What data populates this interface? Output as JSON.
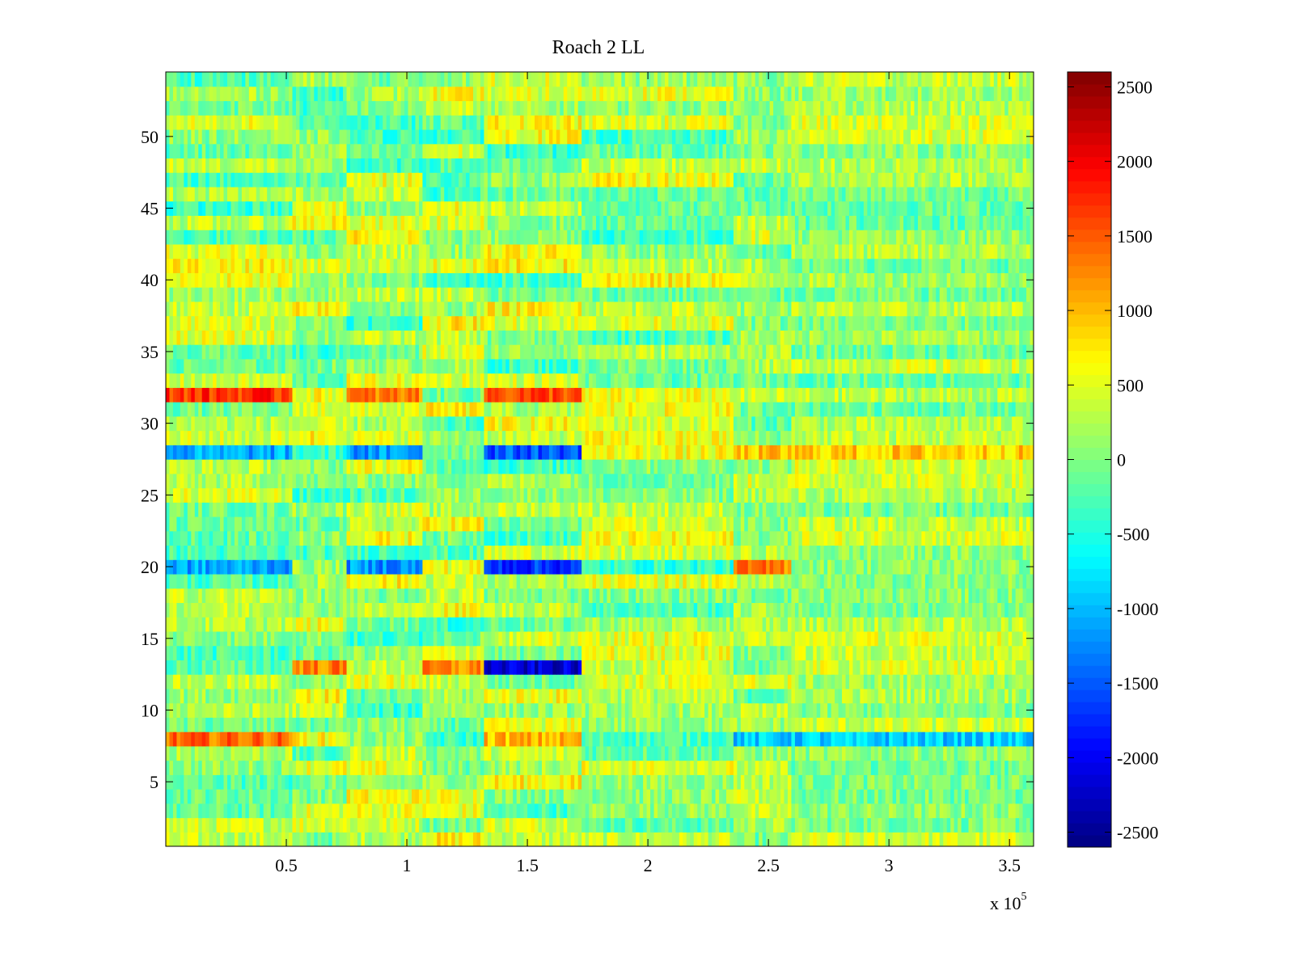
{
  "chart_data": {
    "type": "heatmap",
    "title": "Roach 2 LL",
    "xlabel": "",
    "ylabel": "",
    "x_multiplier_label": "x 10",
    "x_multiplier_exponent": "5",
    "xlim": [
      0,
      3.6
    ],
    "ylim": [
      0.5,
      54.5
    ],
    "x_ticks": [
      0.5,
      1,
      1.5,
      2,
      2.5,
      3,
      3.5
    ],
    "x_tick_labels": [
      "0.5",
      "1",
      "1.5",
      "2",
      "2.5",
      "3",
      "3.5"
    ],
    "y_ticks": [
      5,
      10,
      15,
      20,
      25,
      30,
      35,
      40,
      45,
      50
    ],
    "y_tick_labels": [
      "5",
      "10",
      "15",
      "20",
      "25",
      "30",
      "35",
      "40",
      "45",
      "50"
    ],
    "rows": 54,
    "colorbar": {
      "colormap": "jet",
      "clim": [
        -2600,
        2600
      ],
      "ticks": [
        2500,
        2000,
        1500,
        1000,
        500,
        0,
        -500,
        -1000,
        -1500,
        -2000,
        -2500
      ],
      "tick_labels": [
        "2500",
        "2000",
        "1500",
        "1000",
        "500",
        "0",
        "-500",
        "-1000",
        "-1500",
        "-2000",
        "-2500"
      ]
    },
    "segments": [
      0,
      0.52,
      0.75,
      1.06,
      1.32,
      1.73,
      2.35,
      2.6,
      3.6
    ],
    "notable_values": [
      {
        "row": 32,
        "segments": [
          [
            0,
            0.52,
            1700
          ],
          [
            0.75,
            1.06,
            1300
          ],
          [
            1.32,
            1.73,
            1600
          ]
        ]
      },
      {
        "row": 28,
        "segments": [
          [
            0,
            0.52,
            -1100
          ],
          [
            0.75,
            1.06,
            -1200
          ],
          [
            1.32,
            1.73,
            -1500
          ],
          [
            2.35,
            3.6,
            900
          ]
        ]
      },
      {
        "row": 20,
        "segments": [
          [
            0,
            0.52,
            -1100
          ],
          [
            0.75,
            1.06,
            -1200
          ],
          [
            1.32,
            1.73,
            -1700
          ],
          [
            2.35,
            2.6,
            1300
          ]
        ]
      },
      {
        "row": 13,
        "segments": [
          [
            0.52,
            0.75,
            1300
          ],
          [
            1.32,
            1.73,
            -2200
          ],
          [
            1.06,
            1.32,
            1200
          ]
        ]
      },
      {
        "row": 8,
        "segments": [
          [
            0,
            0.52,
            1400
          ],
          [
            1.32,
            1.73,
            1000
          ],
          [
            2.35,
            3.6,
            -900
          ]
        ]
      }
    ]
  }
}
